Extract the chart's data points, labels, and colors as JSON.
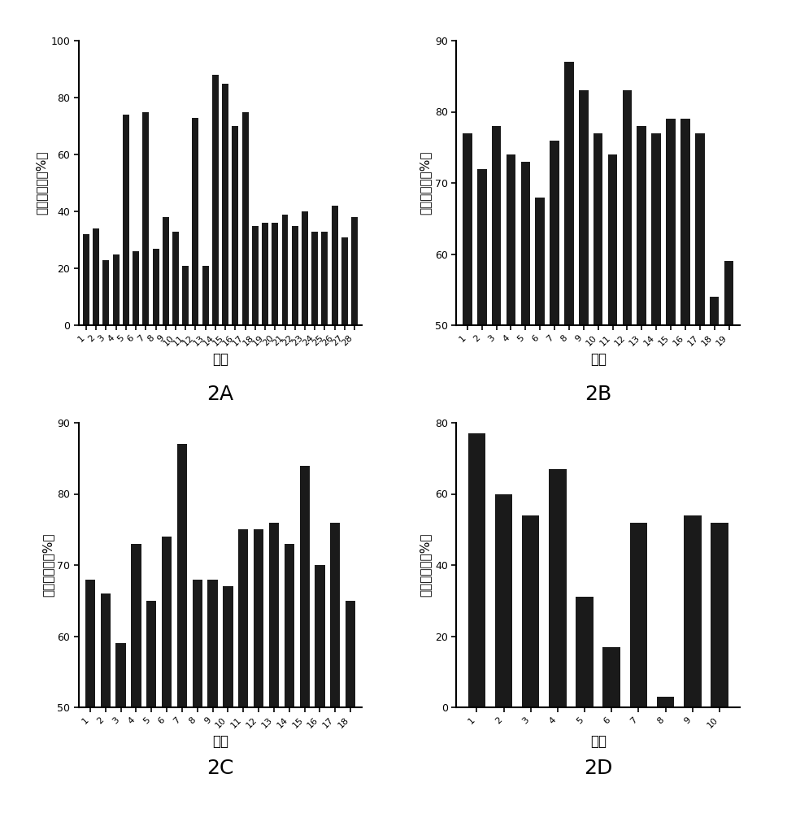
{
  "panel_2A": {
    "values": [
      32,
      34,
      23,
      25,
      74,
      26,
      75,
      27,
      38,
      33,
      21,
      73,
      21,
      88,
      85,
      70,
      75,
      35,
      36,
      36,
      39,
      35,
      40,
      33,
      33,
      42,
      31,
      38
    ],
    "labels": [
      "1",
      "2",
      "3",
      "4",
      "5",
      "6",
      "7",
      "8",
      "9",
      "10",
      "11",
      "12",
      "13",
      "14",
      "15",
      "16",
      "17",
      "18",
      "19",
      "20",
      "21",
      "22",
      "23",
      "24",
      "25",
      "26",
      "27",
      "28"
    ],
    "ylim": [
      0,
      100
    ],
    "yticks": [
      0,
      20,
      40,
      60,
      80,
      100
    ],
    "xlabel": "克隆",
    "ylabel": "阻断抑制率（%）",
    "panel_label": "2A"
  },
  "panel_2B": {
    "values": [
      77,
      72,
      78,
      74,
      73,
      68,
      76,
      87,
      83,
      77,
      74,
      83,
      78,
      77,
      79,
      79,
      77,
      54,
      59
    ],
    "labels": [
      "1",
      "2",
      "3",
      "4",
      "5",
      "6",
      "7",
      "8",
      "9",
      "10",
      "11",
      "12",
      "13",
      "14",
      "15",
      "16",
      "17",
      "18",
      "19"
    ],
    "ylim": [
      50,
      90
    ],
    "yticks": [
      50,
      60,
      70,
      80,
      90
    ],
    "xlabel": "克隆",
    "ylabel": "阻断抑制率（%）",
    "panel_label": "2B"
  },
  "panel_2C": {
    "values": [
      68,
      66,
      59,
      73,
      65,
      74,
      87,
      68,
      68,
      67,
      75,
      75,
      76,
      73,
      84,
      70,
      76,
      65
    ],
    "labels": [
      "1",
      "2",
      "3",
      "4",
      "5",
      "6",
      "7",
      "8",
      "9",
      "10",
      "11",
      "12",
      "13",
      "14",
      "15",
      "16",
      "17",
      "18"
    ],
    "ylim": [
      50,
      90
    ],
    "yticks": [
      50,
      60,
      70,
      80,
      90
    ],
    "xlabel": "克隆",
    "ylabel": "阻断抑制率（%）",
    "panel_label": "2C"
  },
  "panel_2D": {
    "values": [
      77,
      60,
      54,
      67,
      31,
      17,
      52,
      3,
      54,
      52
    ],
    "labels": [
      "1",
      "2",
      "3",
      "4",
      "5",
      "6",
      "7",
      "8",
      "9",
      "10"
    ],
    "ylim": [
      0,
      80
    ],
    "yticks": [
      0,
      20,
      40,
      60,
      80
    ],
    "xlabel": "克隆",
    "ylabel": "阻断抑制率（%）",
    "panel_label": "2D"
  },
  "bar_color": "#1a1a1a",
  "background_color": "#ffffff",
  "bar_width": 0.65,
  "tick_label_fontsize": 8,
  "axis_label_fontsize": 12,
  "panel_label_fontsize": 18
}
